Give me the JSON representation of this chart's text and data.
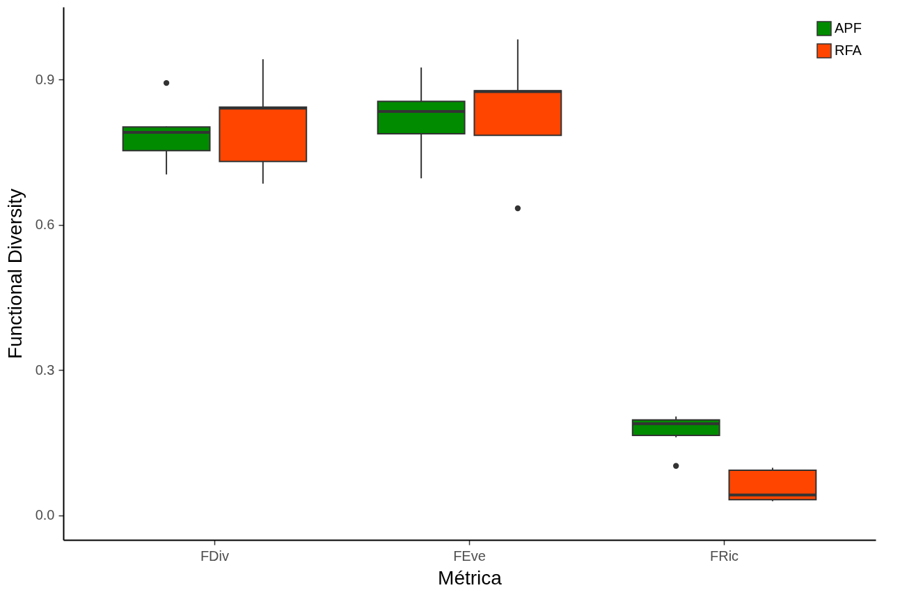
{
  "chart_data": {
    "type": "box",
    "xlabel": "Métrica",
    "ylabel": "Functional Diversity",
    "categories": [
      "FDiv",
      "FEve",
      "FRic"
    ],
    "ylim": [
      -0.051,
      1.05
    ],
    "yticks": [
      {
        "value": 0,
        "label": "0.0"
      },
      0.3,
      0.6,
      0.9
    ],
    "grid": false,
    "legend": "top right",
    "series": [
      {
        "name": "APF",
        "color": "#008b00",
        "boxes": [
          {
            "low": 0.704,
            "q1": 0.753,
            "median": 0.791,
            "q3": 0.802,
            "high": 0.803,
            "outliers": [
              0.893
            ]
          },
          {
            "low": 0.696,
            "q1": 0.788,
            "median": 0.834,
            "q3": 0.855,
            "high": 0.925
          },
          {
            "low": 0.161,
            "q1": 0.165,
            "median": 0.189,
            "q3": 0.197,
            "high": 0.204,
            "outliers": [
              0.102
            ]
          }
        ]
      },
      {
        "name": "RFA",
        "color": "#ff4500",
        "boxes": [
          {
            "low": 0.685,
            "q1": 0.731,
            "median": 0.841,
            "q3": 0.843,
            "high": 0.942
          },
          {
            "low": 0.785,
            "q1": 0.785,
            "median": 0.875,
            "q3": 0.877,
            "high": 0.983,
            "outliers": [
              0.634
            ]
          },
          {
            "low": 0.029,
            "q1": 0.032,
            "median": 0.042,
            "q3": 0.093,
            "high": 0.098
          }
        ]
      }
    ]
  }
}
